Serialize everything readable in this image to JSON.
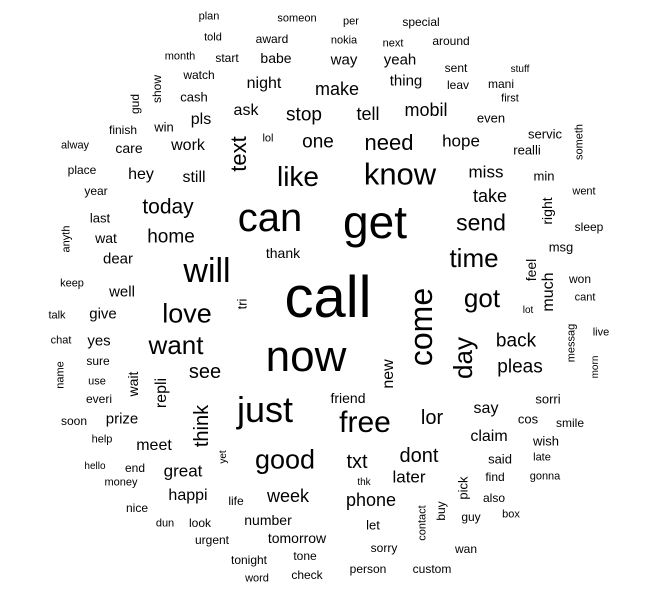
{
  "words": [
    {
      "text": "call"
    },
    {
      "text": "get"
    },
    {
      "text": "now"
    },
    {
      "text": "can"
    },
    {
      "text": "just"
    },
    {
      "text": "will"
    },
    {
      "text": "know"
    },
    {
      "text": "come"
    },
    {
      "text": "free"
    },
    {
      "text": "like"
    },
    {
      "text": "good"
    },
    {
      "text": "got"
    },
    {
      "text": "love"
    },
    {
      "text": "want"
    },
    {
      "text": "time"
    },
    {
      "text": "day"
    },
    {
      "text": "send"
    },
    {
      "text": "text"
    },
    {
      "text": "need"
    },
    {
      "text": "today"
    },
    {
      "text": "see"
    },
    {
      "text": "think"
    },
    {
      "text": "lor"
    },
    {
      "text": "txt"
    },
    {
      "text": "home"
    },
    {
      "text": "dont"
    },
    {
      "text": "back"
    },
    {
      "text": "pleas"
    },
    {
      "text": "make"
    },
    {
      "text": "stop"
    },
    {
      "text": "tell"
    },
    {
      "text": "mobil"
    },
    {
      "text": "one"
    },
    {
      "text": "hope"
    },
    {
      "text": "take"
    },
    {
      "text": "miss"
    },
    {
      "text": "week"
    },
    {
      "text": "phone"
    },
    {
      "text": "say"
    },
    {
      "text": "claim"
    },
    {
      "text": "later"
    },
    {
      "text": "great"
    },
    {
      "text": "happi"
    },
    {
      "text": "meet"
    },
    {
      "text": "prize"
    },
    {
      "text": "work"
    },
    {
      "text": "still"
    },
    {
      "text": "hey"
    },
    {
      "text": "pls"
    },
    {
      "text": "ask"
    },
    {
      "text": "night"
    },
    {
      "text": "way"
    },
    {
      "text": "yeah"
    },
    {
      "text": "thing"
    },
    {
      "text": "repli"
    },
    {
      "text": "new"
    },
    {
      "text": "well"
    },
    {
      "text": "give"
    },
    {
      "text": "yes"
    },
    {
      "text": "dear"
    },
    {
      "text": "wat"
    },
    {
      "text": "last"
    },
    {
      "text": "wait"
    },
    {
      "text": "much"
    },
    {
      "text": "feel"
    },
    {
      "text": "right"
    },
    {
      "text": "msg"
    },
    {
      "text": "min"
    },
    {
      "text": "realli"
    },
    {
      "text": "servic"
    },
    {
      "text": "even"
    },
    {
      "text": "sorri"
    },
    {
      "text": "cos"
    },
    {
      "text": "smile"
    },
    {
      "text": "wish"
    },
    {
      "text": "said"
    },
    {
      "text": "late"
    },
    {
      "text": "find"
    },
    {
      "text": "gonna"
    },
    {
      "text": "also"
    },
    {
      "text": "box"
    },
    {
      "text": "guy"
    },
    {
      "text": "pick"
    },
    {
      "text": "buy"
    },
    {
      "text": "contact"
    },
    {
      "text": "wan"
    },
    {
      "text": "custom"
    },
    {
      "text": "person"
    },
    {
      "text": "sorry"
    },
    {
      "text": "let"
    },
    {
      "text": "thk"
    },
    {
      "text": "friend"
    },
    {
      "text": "tomorrow"
    },
    {
      "text": "number"
    },
    {
      "text": "tone"
    },
    {
      "text": "check"
    },
    {
      "text": "word"
    },
    {
      "text": "tonight"
    },
    {
      "text": "urgent"
    },
    {
      "text": "life"
    },
    {
      "text": "look"
    },
    {
      "text": "dun"
    },
    {
      "text": "nice"
    },
    {
      "text": "money"
    },
    {
      "text": "end"
    },
    {
      "text": "hello"
    },
    {
      "text": "yet"
    },
    {
      "text": "help"
    },
    {
      "text": "soon"
    },
    {
      "text": "everi"
    },
    {
      "text": "use"
    },
    {
      "text": "sure"
    },
    {
      "text": "name"
    },
    {
      "text": "chat"
    },
    {
      "text": "talk"
    },
    {
      "text": "keep"
    },
    {
      "text": "anyth"
    },
    {
      "text": "year"
    },
    {
      "text": "place"
    },
    {
      "text": "alway"
    },
    {
      "text": "care"
    },
    {
      "text": "finish"
    },
    {
      "text": "win"
    },
    {
      "text": "gud"
    },
    {
      "text": "show"
    },
    {
      "text": "cash"
    },
    {
      "text": "watch"
    },
    {
      "text": "month"
    },
    {
      "text": "start"
    },
    {
      "text": "babe"
    },
    {
      "text": "award"
    },
    {
      "text": "told"
    },
    {
      "text": "plan"
    },
    {
      "text": "someon"
    },
    {
      "text": "per"
    },
    {
      "text": "special"
    },
    {
      "text": "nokia"
    },
    {
      "text": "next"
    },
    {
      "text": "around"
    },
    {
      "text": "sent"
    },
    {
      "text": "leav"
    },
    {
      "text": "mani"
    },
    {
      "text": "stuff"
    },
    {
      "text": "first"
    },
    {
      "text": "someth"
    },
    {
      "text": "went"
    },
    {
      "text": "sleep"
    },
    {
      "text": "won"
    },
    {
      "text": "cant"
    },
    {
      "text": "live"
    },
    {
      "text": "messag"
    },
    {
      "text": "morn"
    },
    {
      "text": "lot"
    },
    {
      "text": "thank"
    },
    {
      "text": "tri"
    },
    {
      "text": "lol"
    }
  ]
}
